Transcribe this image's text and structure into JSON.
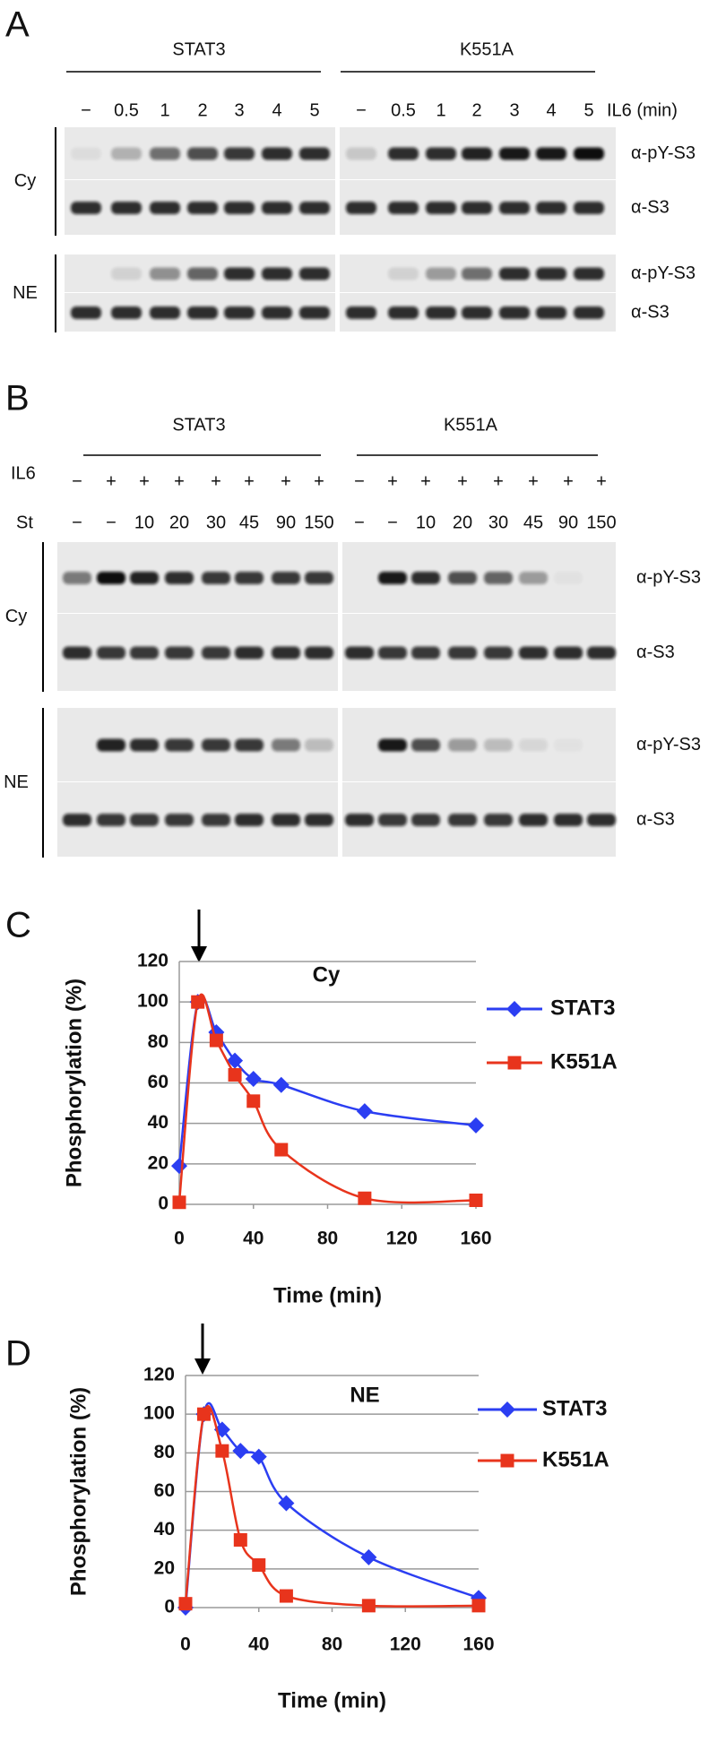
{
  "panel_a": {
    "letter": "A",
    "treatment": "IL6 (min)",
    "groups": [
      {
        "name": "STAT3",
        "lanes": [
          "−",
          "0.5",
          "1",
          "2",
          "3",
          "4",
          "5"
        ]
      },
      {
        "name": "K551A",
        "lanes": [
          "−",
          "0.5",
          "1",
          "2",
          "3",
          "4",
          "5"
        ]
      }
    ],
    "fractions": [
      {
        "name": "Cy",
        "blots": [
          "α-pY-S3",
          "α-S3"
        ]
      },
      {
        "name": "NE",
        "blots": [
          "α-pY-S3",
          "α-S3"
        ]
      }
    ]
  },
  "panel_b": {
    "letter": "B",
    "row_labels": [
      "IL6",
      "St"
    ],
    "groups": [
      {
        "name": "STAT3",
        "il6": [
          "−",
          "+",
          "+",
          "+",
          "+",
          "+",
          "+",
          "+"
        ],
        "st": [
          "−",
          "−",
          "10",
          "20",
          "30",
          "45",
          "90",
          "150"
        ]
      },
      {
        "name": "K551A",
        "il6": [
          "−",
          "+",
          "+",
          "+",
          "+",
          "+",
          "+",
          "+"
        ],
        "st": [
          "−",
          "−",
          "10",
          "20",
          "30",
          "45",
          "90",
          "150"
        ]
      }
    ],
    "fractions": [
      {
        "name": "Cy",
        "blots": [
          "α-pY-S3",
          "α-S3"
        ]
      },
      {
        "name": "NE",
        "blots": [
          "α-pY-S3",
          "α-S3"
        ]
      }
    ]
  },
  "chart_data": [
    {
      "type": "line",
      "letter": "C",
      "title": "Cy",
      "x_label": "Time (min)",
      "y_label": "Phosphorylation (%)",
      "x": [
        0,
        10,
        20,
        30,
        40,
        55,
        100,
        160
      ],
      "series": [
        {
          "name": "STAT3",
          "color": "#2b3ef2",
          "marker": "diamond",
          "values": [
            19,
            100,
            85,
            71,
            62,
            59,
            46,
            39
          ]
        },
        {
          "name": "K551A",
          "color": "#e8341c",
          "marker": "square",
          "values": [
            1,
            100,
            81,
            64,
            51,
            27,
            3,
            2
          ]
        }
      ],
      "xlim": [
        0,
        160
      ],
      "xticks": [
        0,
        40,
        80,
        120,
        160
      ],
      "ylim": [
        0,
        120
      ],
      "yticks": [
        0,
        20,
        40,
        60,
        80,
        100,
        120
      ],
      "grid": true,
      "smooth": true
    },
    {
      "type": "line",
      "letter": "D",
      "title": "NE",
      "x_label": "Time (min)",
      "y_label": "Phosphorylation (%)",
      "x": [
        0,
        10,
        20,
        30,
        40,
        55,
        100,
        160
      ],
      "series": [
        {
          "name": "STAT3",
          "color": "#2b3ef2",
          "marker": "diamond",
          "values": [
            0,
            100,
            92,
            81,
            78,
            54,
            26,
            5
          ]
        },
        {
          "name": "K551A",
          "color": "#e8341c",
          "marker": "square",
          "values": [
            2,
            100,
            81,
            35,
            22,
            6,
            1,
            1
          ]
        }
      ],
      "xlim": [
        0,
        160
      ],
      "xticks": [
        0,
        40,
        80,
        120,
        160
      ],
      "ylim": [
        0,
        120
      ],
      "yticks": [
        0,
        20,
        40,
        60,
        80,
        100,
        120
      ],
      "grid": true,
      "smooth": true
    }
  ]
}
